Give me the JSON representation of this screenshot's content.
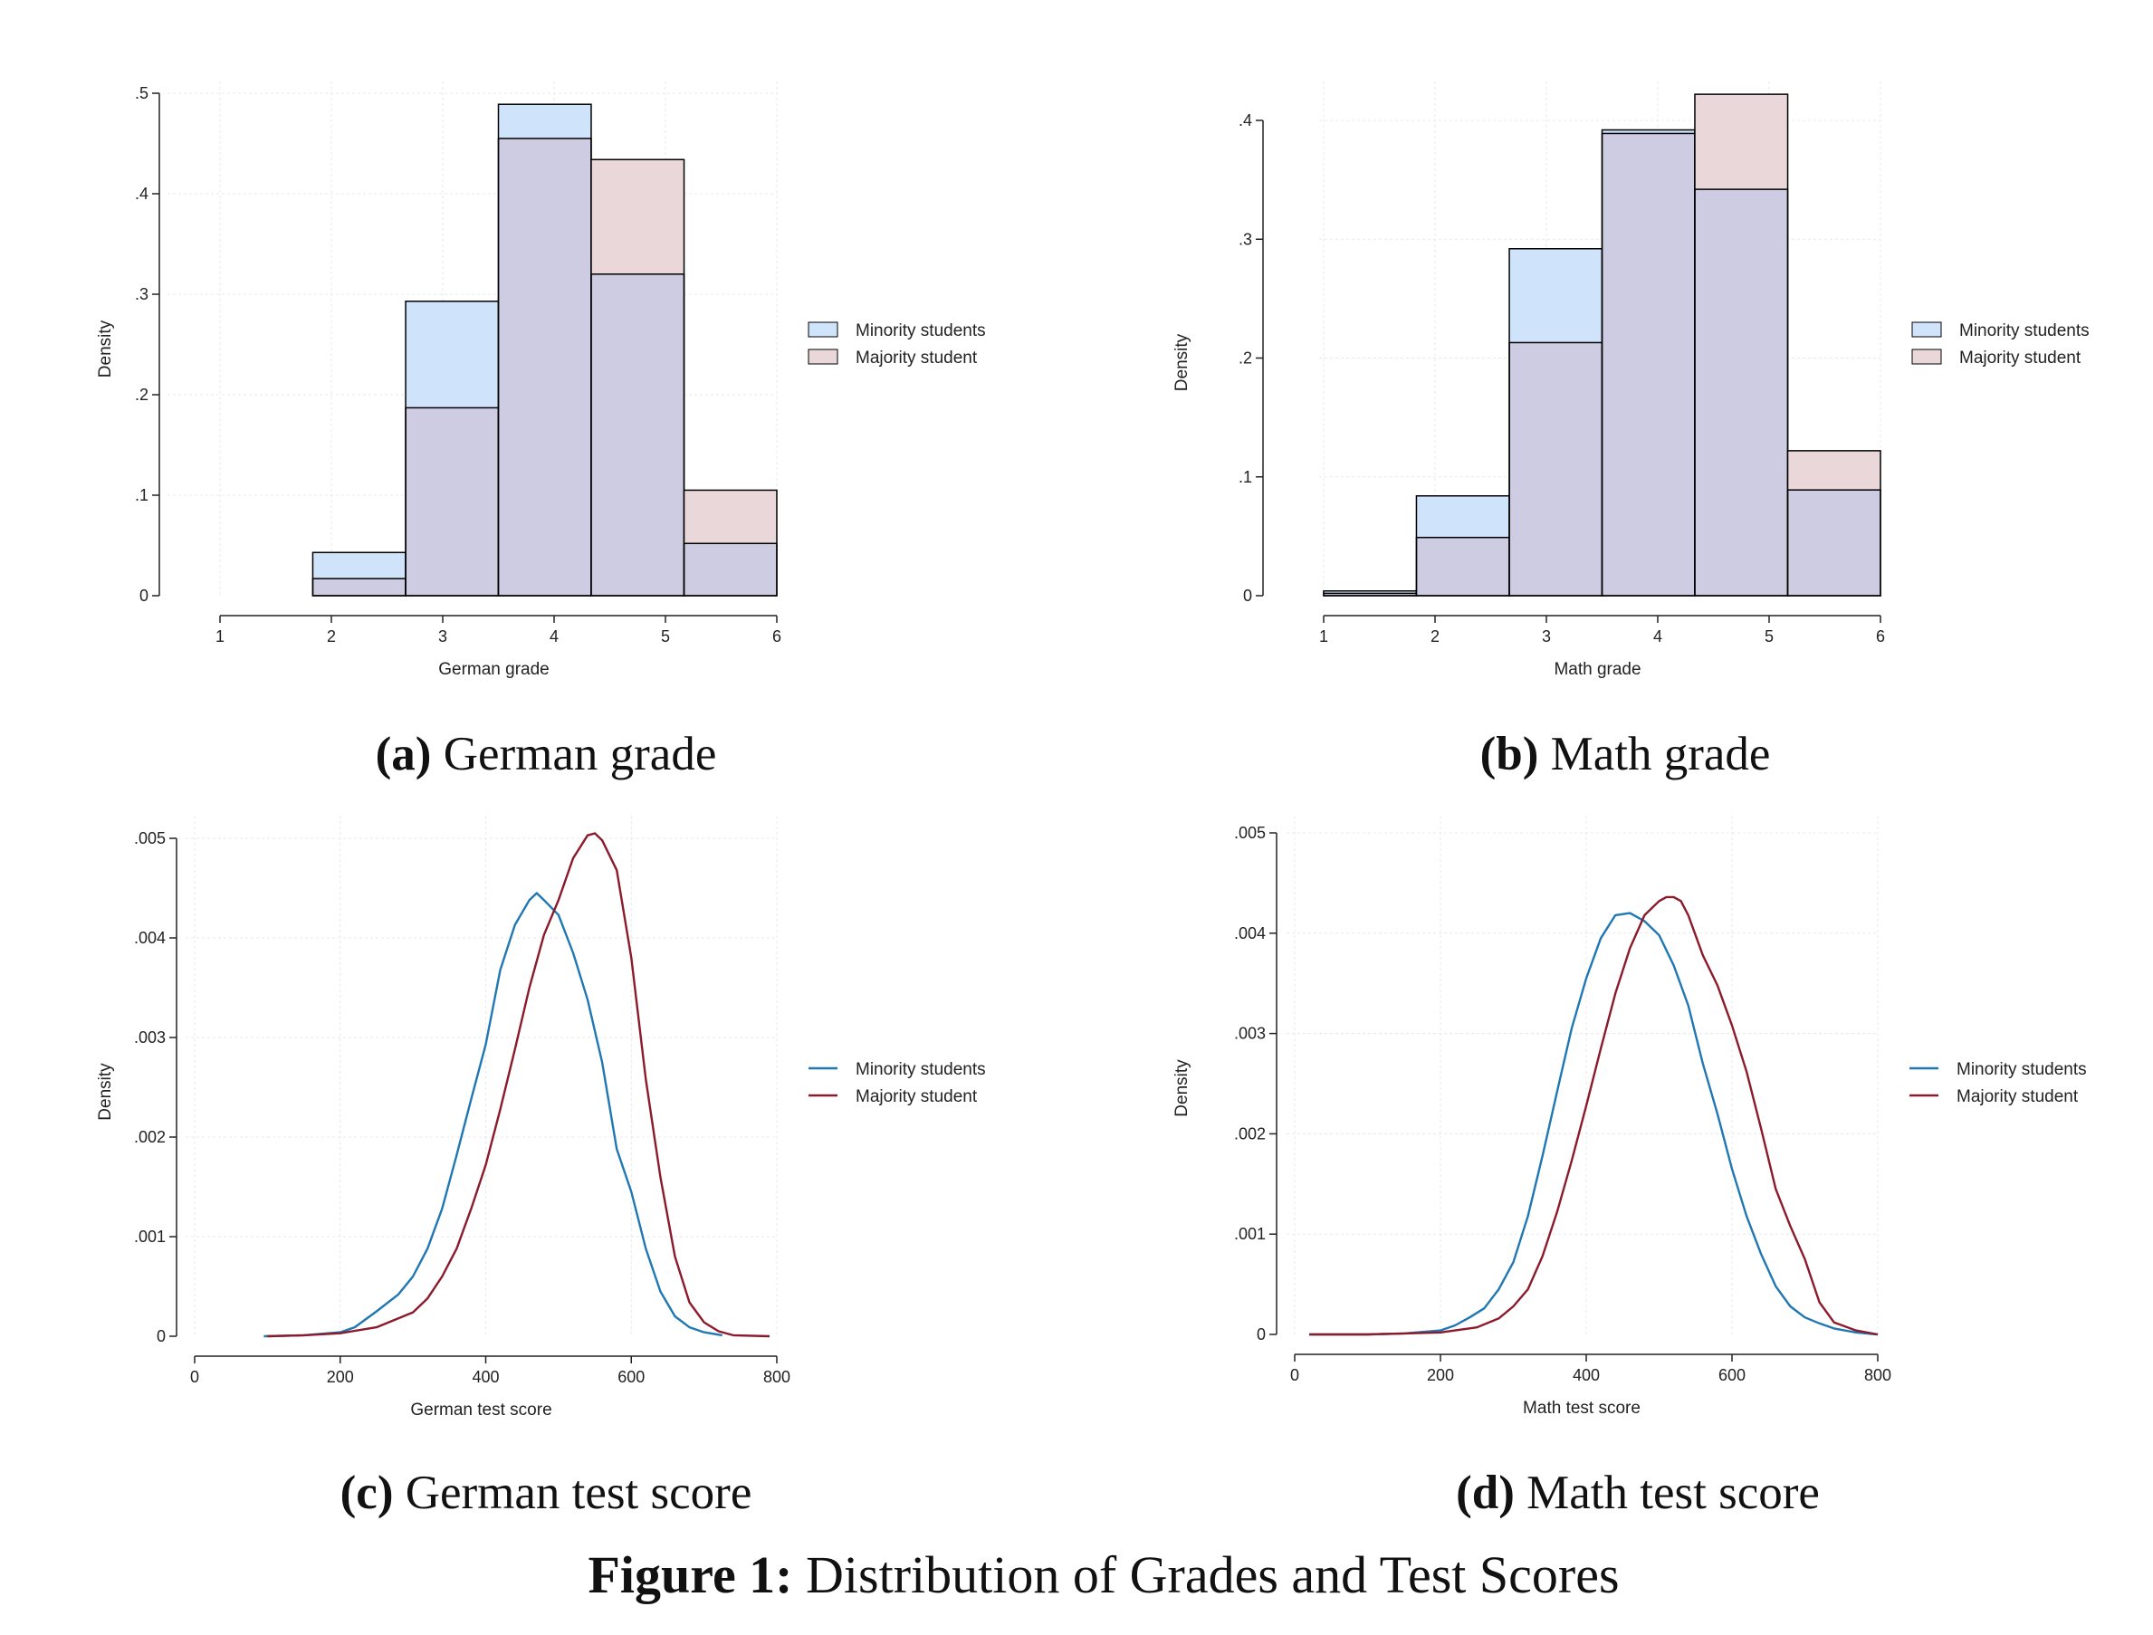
{
  "colors": {
    "minority_fill": "#cfe4fa",
    "majority_fill": "#ead7da",
    "overlap_fill": "#cdcce3",
    "minority_line": "#1f77b4",
    "majority_line": "#8b1a2b",
    "bar_outline": "#000000",
    "axis": "#222222",
    "grid": "#e8e8e8"
  },
  "figure_caption": {
    "label": "Figure 1:",
    "text": "Distribution of Grades and Test Scores"
  },
  "chart_data": [
    {
      "id": "a",
      "type": "bar",
      "caption_label": "(a)",
      "caption_text": "German grade",
      "xlabel": "German grade",
      "ylabel": "Density",
      "xlim": [
        1,
        6
      ],
      "ylim": [
        0,
        0.5
      ],
      "x_ticks": [
        1,
        2,
        3,
        4,
        5,
        6
      ],
      "y_ticks": [
        0,
        0.1,
        0.2,
        0.3,
        0.4,
        0.5
      ],
      "y_tick_labels": [
        "0",
        ".1",
        ".2",
        ".3",
        ".4",
        ".5"
      ],
      "bin_edges": [
        1,
        1.833,
        2.667,
        3.5,
        4.333,
        5.167,
        6
      ],
      "legend_position": "right",
      "series": [
        {
          "name": "Minority students",
          "values": [
            0.0,
            0.043,
            0.293,
            0.489,
            0.32,
            0.052
          ]
        },
        {
          "name": "Majority student",
          "values": [
            0.0,
            0.017,
            0.187,
            0.455,
            0.434,
            0.105
          ]
        }
      ]
    },
    {
      "id": "b",
      "type": "bar",
      "caption_label": "(b)",
      "caption_text": "Math grade",
      "xlabel": "Math grade",
      "ylabel": "Density",
      "xlim": [
        1,
        6
      ],
      "ylim": [
        0,
        0.4
      ],
      "x_ticks": [
        1,
        2,
        3,
        4,
        5,
        6
      ],
      "y_ticks": [
        0,
        0.1,
        0.2,
        0.3,
        0.4
      ],
      "y_tick_labels": [
        "0",
        ".1",
        ".2",
        ".3",
        ".4"
      ],
      "bin_edges": [
        1,
        1.833,
        2.667,
        3.5,
        4.333,
        5.167,
        6
      ],
      "legend_position": "right",
      "series": [
        {
          "name": "Minority students",
          "values": [
            0.004,
            0.084,
            0.292,
            0.392,
            0.342,
            0.089
          ]
        },
        {
          "name": "Majority student",
          "values": [
            0.002,
            0.049,
            0.213,
            0.389,
            0.422,
            0.122
          ]
        }
      ]
    },
    {
      "id": "c",
      "type": "line",
      "caption_label": "(c)",
      "caption_text": "German test score",
      "xlabel": "German test score",
      "ylabel": "Density",
      "xlim": [
        0,
        800
      ],
      "ylim": [
        0,
        0.005
      ],
      "x_ticks": [
        0,
        200,
        400,
        600,
        800
      ],
      "y_ticks": [
        0,
        0.001,
        0.002,
        0.003,
        0.004,
        0.005
      ],
      "y_tick_labels": [
        "0",
        ".001",
        ".002",
        ".003",
        ".004",
        ".005"
      ],
      "legend_position": "right",
      "series": [
        {
          "name": "Minority students",
          "x": [
            95,
            150,
            200,
            220,
            250,
            280,
            300,
            320,
            340,
            360,
            380,
            400,
            420,
            440,
            460,
            470,
            480,
            500,
            520,
            540,
            560,
            580,
            600,
            620,
            640,
            660,
            680,
            700,
            725
          ],
          "y": [
            0.0,
            1e-05,
            4e-05,
            9e-05,
            0.00025,
            0.00042,
            0.0006,
            0.00088,
            0.00128,
            0.00182,
            0.00238,
            0.00293,
            0.00368,
            0.00413,
            0.00438,
            0.00445,
            0.00438,
            0.00423,
            0.00385,
            0.00338,
            0.00275,
            0.00188,
            0.00145,
            0.00088,
            0.00045,
            0.0002,
            9e-05,
            4e-05,
            1e-05
          ]
        },
        {
          "name": "Majority student",
          "x": [
            100,
            150,
            200,
            250,
            300,
            320,
            340,
            360,
            380,
            400,
            420,
            440,
            460,
            480,
            500,
            520,
            540,
            550,
            560,
            580,
            600,
            620,
            640,
            660,
            680,
            700,
            720,
            740,
            790
          ],
          "y": [
            0.0,
            1e-05,
            3e-05,
            9e-05,
            0.00024,
            0.00038,
            0.0006,
            0.00088,
            0.00128,
            0.00172,
            0.00228,
            0.00288,
            0.0035,
            0.00403,
            0.00438,
            0.0048,
            0.00503,
            0.00505,
            0.00498,
            0.00468,
            0.0038,
            0.00258,
            0.0016,
            0.0008,
            0.00034,
            0.00014,
            5e-05,
            1e-05,
            0.0
          ]
        }
      ]
    },
    {
      "id": "d",
      "type": "line",
      "caption_label": "(d)",
      "caption_text": "Math test score",
      "xlabel": "Math test score",
      "ylabel": "Density",
      "xlim": [
        0,
        800
      ],
      "ylim": [
        0,
        0.005
      ],
      "x_ticks": [
        0,
        200,
        400,
        600,
        800
      ],
      "y_ticks": [
        0,
        0.001,
        0.002,
        0.003,
        0.004,
        0.005
      ],
      "y_tick_labels": [
        "0",
        ".001",
        ".002",
        ".003",
        ".004",
        ".005"
      ],
      "legend_position": "right",
      "series": [
        {
          "name": "Minority students",
          "x": [
            20,
            100,
            150,
            200,
            220,
            240,
            260,
            280,
            300,
            320,
            340,
            360,
            380,
            400,
            420,
            440,
            460,
            480,
            500,
            520,
            540,
            560,
            580,
            600,
            620,
            640,
            660,
            680,
            700,
            720,
            740,
            770,
            800
          ],
          "y": [
            0.0,
            0.0,
            1e-05,
            4e-05,
            9e-05,
            0.00017,
            0.00026,
            0.00045,
            0.00072,
            0.00118,
            0.00178,
            0.00242,
            0.00305,
            0.00355,
            0.00395,
            0.00418,
            0.0042,
            0.00412,
            0.00398,
            0.00368,
            0.00328,
            0.0027,
            0.0022,
            0.00165,
            0.00118,
            0.0008,
            0.00048,
            0.00028,
            0.00017,
            0.00011,
            6e-05,
            2e-05,
            0.0
          ]
        },
        {
          "name": "Majority student",
          "x": [
            20,
            100,
            150,
            200,
            220,
            250,
            280,
            300,
            320,
            340,
            360,
            380,
            400,
            420,
            440,
            460,
            480,
            500,
            510,
            520,
            530,
            540,
            560,
            580,
            600,
            620,
            640,
            660,
            680,
            700,
            720,
            740,
            770,
            800
          ],
          "y": [
            0.0,
            0.0,
            1e-05,
            2e-05,
            4e-05,
            7e-05,
            0.00016,
            0.00028,
            0.00045,
            0.00078,
            0.00122,
            0.00173,
            0.00228,
            0.00285,
            0.0034,
            0.00385,
            0.00418,
            0.00432,
            0.00436,
            0.00436,
            0.00432,
            0.00418,
            0.00378,
            0.00348,
            0.00308,
            0.00262,
            0.00205,
            0.00145,
            0.00108,
            0.00075,
            0.00032,
            0.00012,
            4e-05,
            0.0
          ]
        }
      ]
    }
  ]
}
